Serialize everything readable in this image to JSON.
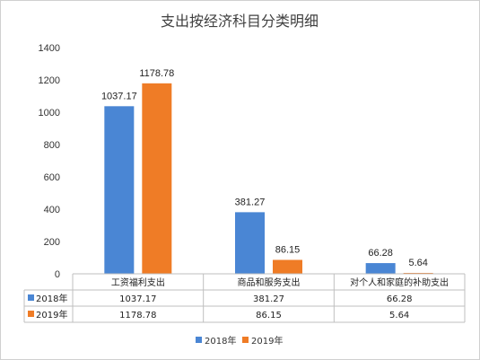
{
  "chart_data": {
    "type": "bar",
    "title": "支出按经济科目分类明细",
    "categories": [
      "工资福利支出",
      "商品和服务支出",
      "对个人和家庭的补助支出"
    ],
    "series": [
      {
        "name": "2018年",
        "values": [
          1037.17,
          381.27,
          66.28
        ],
        "labels": [
          "1037.17",
          "381.27",
          "66.28"
        ],
        "color": "#4a86d4"
      },
      {
        "name": "2019年",
        "values": [
          1178.78,
          86.15,
          5.64
        ],
        "labels": [
          "1178.78",
          "86.15",
          "5.64"
        ],
        "color": "#ef7c26"
      }
    ],
    "ylim": [
      0,
      1400
    ],
    "yticks": [
      0,
      200,
      400,
      600,
      800,
      1000,
      1200,
      1400
    ],
    "grid": false,
    "data_table": true,
    "legend": "bottom"
  }
}
